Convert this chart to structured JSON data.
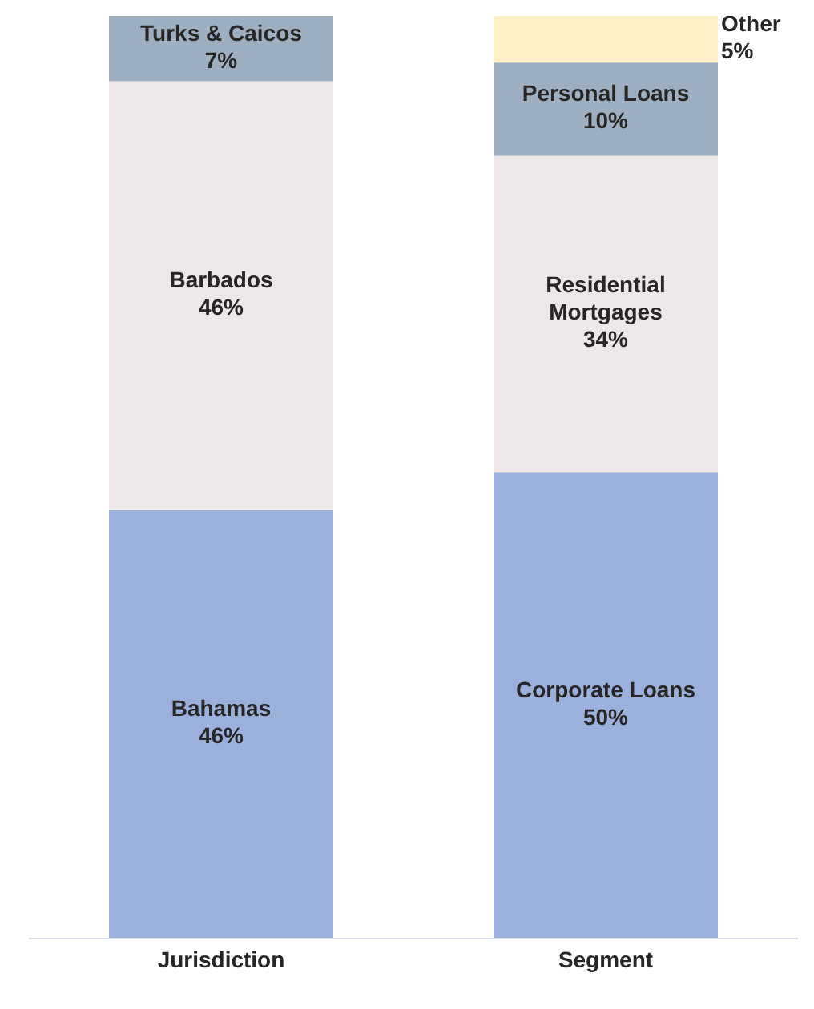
{
  "chart_data": {
    "type": "bar",
    "stacked": true,
    "categories": [
      "Jurisdiction",
      "Segment"
    ],
    "series": [
      {
        "name": "Bahamas",
        "color": "#9bb0da",
        "values": [
          46,
          null
        ],
        "value_labels": [
          "46%",
          null
        ]
      },
      {
        "name": "Barbados",
        "color": "#ede8e7",
        "values": [
          46,
          null
        ],
        "value_labels": [
          "46%",
          null
        ]
      },
      {
        "name": "Turks & Caicos",
        "color": "#9eafc2",
        "values": [
          7,
          null
        ],
        "value_labels": [
          "7%",
          null
        ]
      },
      {
        "name": "Corporate Loans",
        "color": "#9bb0da",
        "values": [
          null,
          50
        ],
        "value_labels": [
          null,
          "50%"
        ]
      },
      {
        "name": "Residential Mortgages",
        "color": "#ede8e7",
        "values": [
          null,
          34
        ],
        "value_labels": [
          null,
          "34%"
        ]
      },
      {
        "name": "Personal Loans",
        "color": "#9eafc2",
        "values": [
          null,
          10
        ],
        "value_labels": [
          null,
          "10%"
        ]
      },
      {
        "name": "Other",
        "color": "#fdf0c7",
        "values": [
          null,
          5
        ],
        "value_labels": [
          null,
          "5%"
        ]
      }
    ]
  }
}
